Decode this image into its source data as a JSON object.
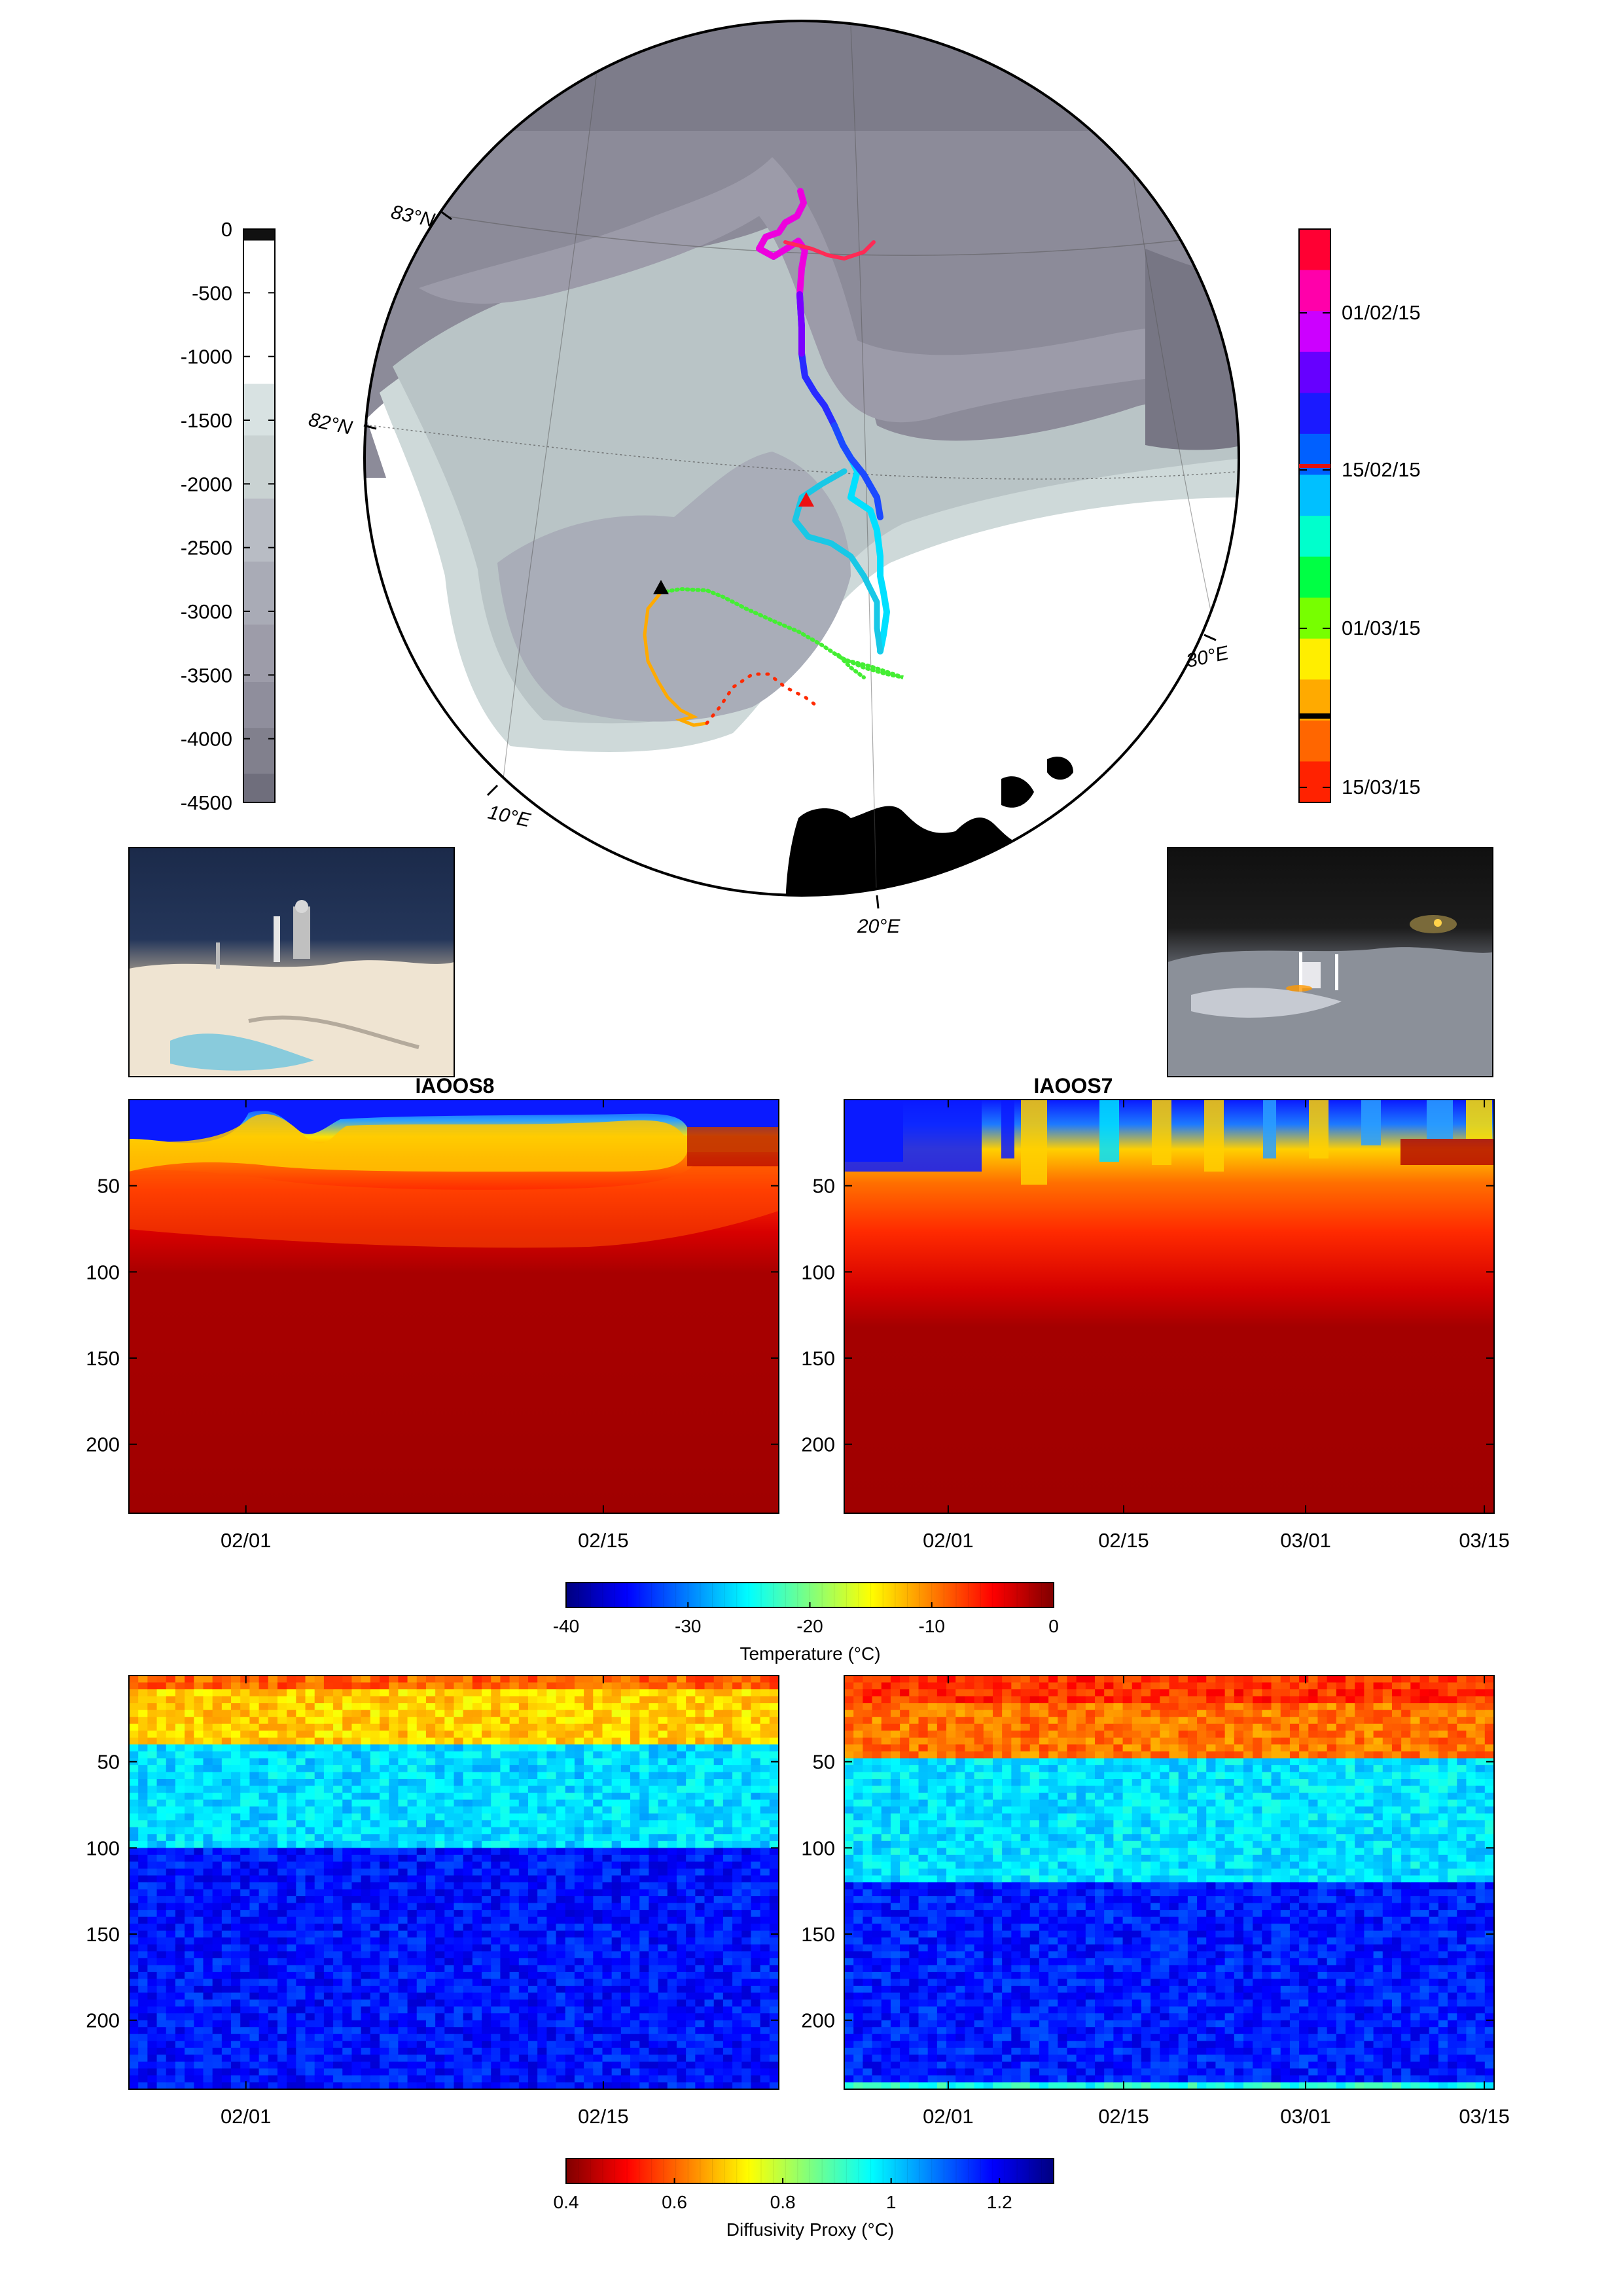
{
  "map": {
    "depth_colorbar": {
      "ticks": [
        "0",
        "-500",
        "-1000",
        "-1500",
        "-2000",
        "-2500",
        "-3000",
        "-3500",
        "-4000",
        "-4500"
      ],
      "colors": [
        "#111111",
        "#ffffff",
        "#ffffff",
        "#d8e2e2",
        "#c9d2d2",
        "#b8bcc4",
        "#a9abb6",
        "#9d9ca9",
        "#8f8e9c",
        "#81808d",
        "#6f6e7c"
      ]
    },
    "lat_labels": [
      "83°N",
      "82°N"
    ],
    "lon_labels": [
      "10°E",
      "20°E",
      "30°E"
    ],
    "date_colorbar": {
      "ticks": [
        "01/02/15",
        "15/02/15",
        "01/03/15",
        "15/03/15"
      ],
      "colors": [
        "#ff0033",
        "#ff00aa",
        "#cc00ff",
        "#6600ff",
        "#1a1aff",
        "#0060ff",
        "#00c0ff",
        "#00ffcc",
        "#00ff44",
        "#77ff00",
        "#ffee00",
        "#ffaa00",
        "#ff6600",
        "#ff2200"
      ]
    }
  },
  "chart_data": [
    {
      "type": "heatmap",
      "title": "IAOOS8",
      "x_ticks": [
        "02/01",
        "02/15"
      ],
      "y_ticks": [
        "50",
        "100",
        "150",
        "200"
      ],
      "ylim": [
        240,
        0
      ],
      "variable": "temperature"
    },
    {
      "type": "heatmap",
      "title": "IAOOS7",
      "x_ticks": [
        "02/01",
        "02/15",
        "03/01",
        "03/15"
      ],
      "y_ticks": [
        "50",
        "100",
        "150",
        "200"
      ],
      "ylim": [
        240,
        0
      ],
      "variable": "temperature"
    },
    {
      "type": "heatmap",
      "title": "",
      "x_ticks": [
        "02/01",
        "02/15"
      ],
      "y_ticks": [
        "50",
        "100",
        "150",
        "200"
      ],
      "ylim": [
        240,
        0
      ],
      "variable": "diffusivity"
    },
    {
      "type": "heatmap",
      "title": "",
      "x_ticks": [
        "02/01",
        "02/15",
        "03/01",
        "03/15"
      ],
      "y_ticks": [
        "50",
        "100",
        "150",
        "200"
      ],
      "ylim": [
        240,
        0
      ],
      "variable": "diffusivity"
    }
  ],
  "temperature_colorbar": {
    "label": "Temperature (°C)",
    "ticks": [
      "-40",
      "-30",
      "-20",
      "-10",
      "0"
    ],
    "range": [
      -40,
      0
    ]
  },
  "diffusivity_colorbar": {
    "label": "Diffusivity Proxy (°C)",
    "ticks": [
      "0.4",
      "0.6",
      "0.8",
      "1",
      "1.2"
    ],
    "range": [
      0.4,
      1.3
    ]
  }
}
